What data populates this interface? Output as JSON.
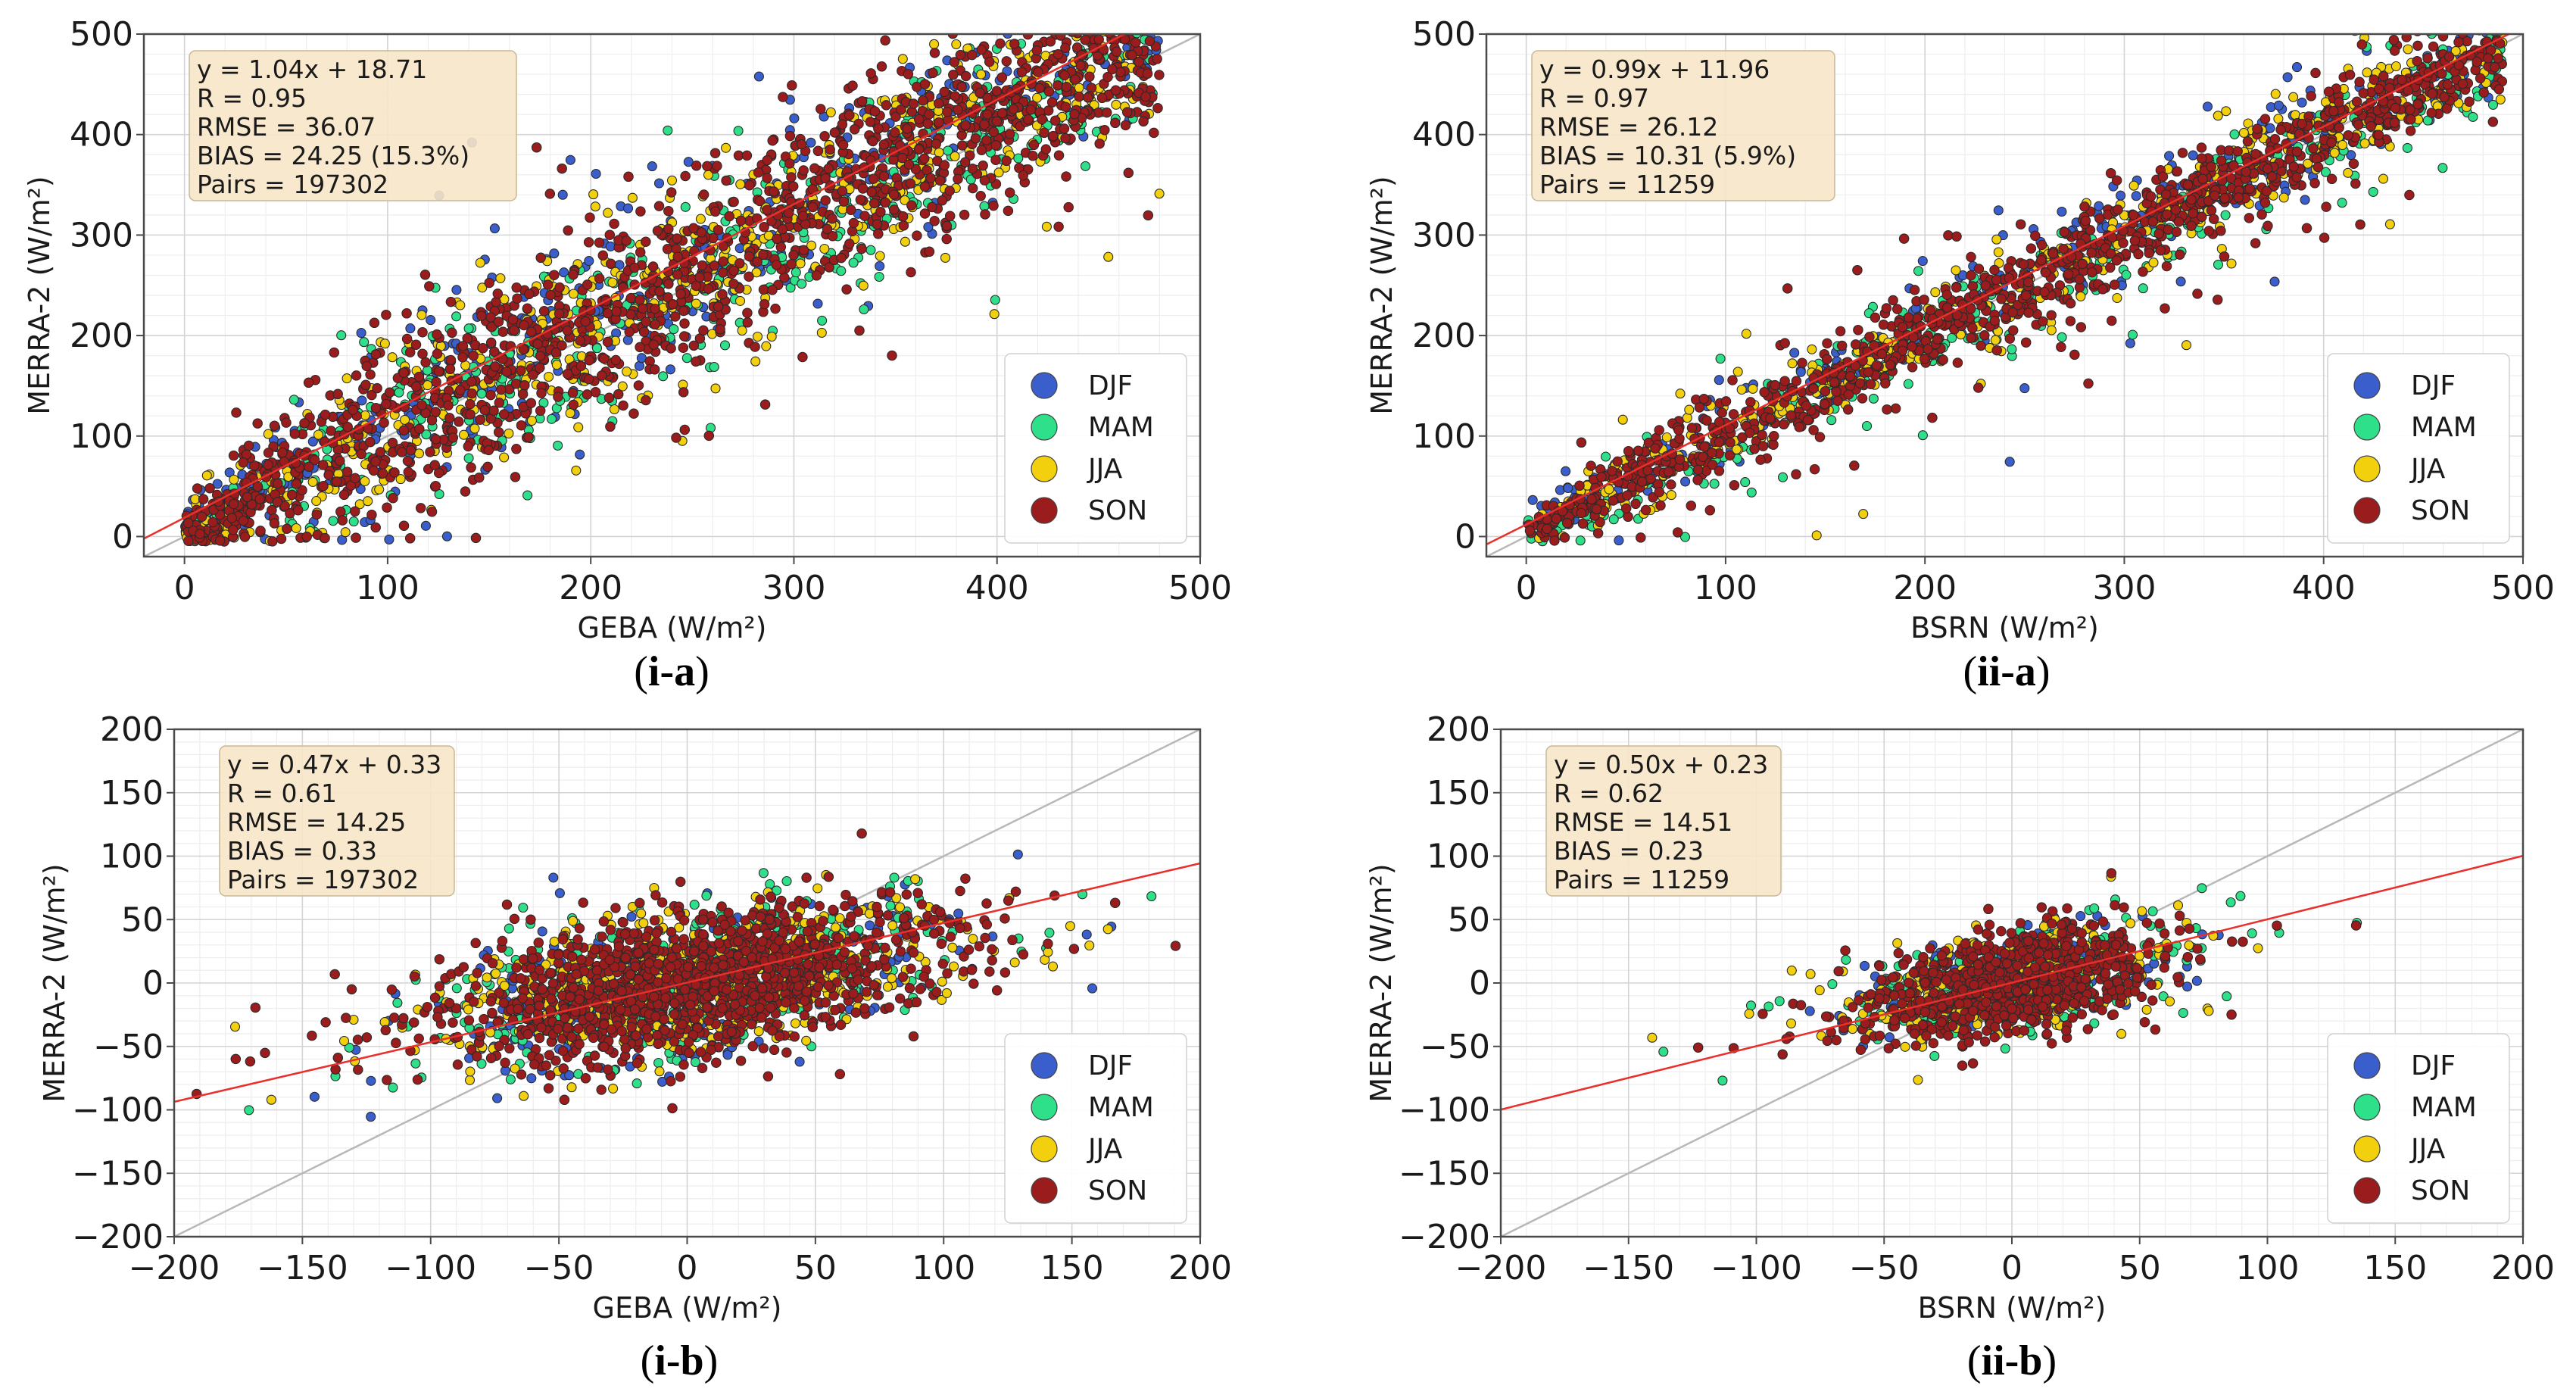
{
  "chart_data": [
    {
      "type": "scatter",
      "panel_label": "i-a",
      "xlabel": "GEBA (W/m²)",
      "ylabel": "MERRA-2 (W/m²)",
      "xlim": [
        -20,
        500
      ],
      "ylim": [
        -20,
        500
      ],
      "xticks": [
        0,
        100,
        200,
        300,
        400,
        500
      ],
      "yticks": [
        0,
        100,
        200,
        300,
        400,
        500
      ],
      "grid": true,
      "legend_position": "bottom-right",
      "stats_lines": [
        "y = 1.04x + 18.71",
        "R = 0.95",
        "RMSE = 36.07",
        "BIAS = 24.25 (15.3%)",
        "Pairs = 197302"
      ],
      "regression": {
        "slope": 1.04,
        "intercept": 18.71
      },
      "identity_line": true,
      "cloud": {
        "x_range": [
          0,
          480
        ],
        "spread": 45,
        "outer_spread": 80
      },
      "series": [
        {
          "name": "DJF",
          "color": "#3a5fcd",
          "count": 450
        },
        {
          "name": "MAM",
          "color": "#2ee08a",
          "count": 450
        },
        {
          "name": "JJA",
          "color": "#f2d00e",
          "count": 550
        },
        {
          "name": "SON",
          "color": "#9b1c1c",
          "count": 1500
        }
      ]
    },
    {
      "type": "scatter",
      "panel_label": "ii-a",
      "xlabel": "BSRN (W/m²)",
      "ylabel": "MERRA-2 (W/m²)",
      "xlim": [
        -20,
        500
      ],
      "ylim": [
        -20,
        500
      ],
      "xticks": [
        0,
        100,
        200,
        300,
        400,
        500
      ],
      "yticks": [
        0,
        100,
        200,
        300,
        400,
        500
      ],
      "grid": true,
      "legend_position": "bottom-right",
      "stats_lines": [
        "y = 0.99x + 11.96",
        "R = 0.97",
        "RMSE = 26.12",
        "BIAS = 10.31 (5.9%)",
        "Pairs = 11259"
      ],
      "regression": {
        "slope": 0.99,
        "intercept": 11.96
      },
      "identity_line": true,
      "cloud": {
        "x_range": [
          0,
          490
        ],
        "spread": 22,
        "outer_spread": 50
      },
      "series": [
        {
          "name": "DJF",
          "color": "#3a5fcd",
          "count": 350
        },
        {
          "name": "MAM",
          "color": "#2ee08a",
          "count": 300
        },
        {
          "name": "JJA",
          "color": "#f2d00e",
          "count": 450
        },
        {
          "name": "SON",
          "color": "#9b1c1c",
          "count": 1100
        }
      ]
    },
    {
      "type": "scatter",
      "panel_label": "i-b",
      "xlabel": "GEBA (W/m²)",
      "ylabel": "MERRA-2 (W/m²)",
      "xlim": [
        -200,
        200
      ],
      "ylim": [
        -200,
        200
      ],
      "xticks": [
        -200,
        -150,
        -100,
        -50,
        0,
        50,
        100,
        150,
        200
      ],
      "yticks": [
        -200,
        -150,
        -100,
        -50,
        0,
        50,
        100,
        150,
        200
      ],
      "grid": true,
      "legend_position": "bottom-right",
      "stats_lines": [
        "y = 0.47x + 0.33",
        "R = 0.61",
        "RMSE = 14.25",
        "BIAS = 0.33",
        "Pairs = 197302"
      ],
      "regression": {
        "slope": 0.47,
        "intercept": 0.33
      },
      "identity_line": true,
      "cloud": {
        "x_center": 0,
        "x_sd": 45,
        "y_sd": 28,
        "slope": 0.3
      },
      "series": [
        {
          "name": "DJF",
          "color": "#3a5fcd",
          "count": 350
        },
        {
          "name": "MAM",
          "color": "#2ee08a",
          "count": 400
        },
        {
          "name": "JJA",
          "color": "#f2d00e",
          "count": 600
        },
        {
          "name": "SON",
          "color": "#9b1c1c",
          "count": 1300
        }
      ]
    },
    {
      "type": "scatter",
      "panel_label": "ii-b",
      "xlabel": "BSRN (W/m²)",
      "ylabel": "MERRA-2 (W/m²)",
      "xlim": [
        -200,
        200
      ],
      "ylim": [
        -200,
        200
      ],
      "xticks": [
        -200,
        -150,
        -100,
        -50,
        0,
        50,
        100,
        150,
        200
      ],
      "yticks": [
        -200,
        -150,
        -100,
        -50,
        0,
        50,
        100,
        150,
        200
      ],
      "grid": true,
      "legend_position": "bottom-right",
      "stats_lines": [
        "y = 0.50x + 0.23",
        "R = 0.62",
        "RMSE = 14.51",
        "BIAS = 0.23",
        "Pairs = 11259"
      ],
      "regression": {
        "slope": 0.5,
        "intercept": 0.23
      },
      "identity_line": true,
      "cloud": {
        "x_center": 0,
        "x_sd": 28,
        "y_sd": 20,
        "slope": 0.35
      },
      "series": [
        {
          "name": "DJF",
          "color": "#3a5fcd",
          "count": 250
        },
        {
          "name": "MAM",
          "color": "#2ee08a",
          "count": 250
        },
        {
          "name": "JJA",
          "color": "#f2d00e",
          "count": 350
        },
        {
          "name": "SON",
          "color": "#9b1c1c",
          "count": 800
        }
      ]
    }
  ]
}
